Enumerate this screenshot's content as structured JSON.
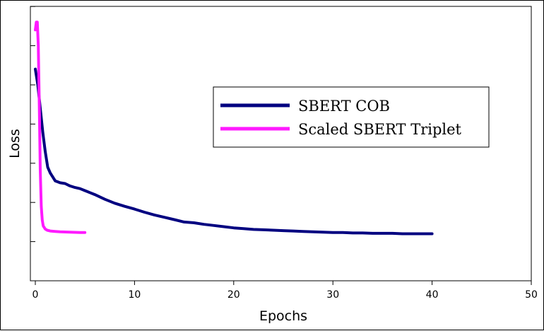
{
  "chart_data": {
    "type": "line",
    "title": "",
    "xlabel": "Epochs",
    "ylabel": "Loss",
    "xlim": [
      0,
      50
    ],
    "x_ticks": [
      "0",
      "10",
      "20",
      "30",
      "40",
      "50"
    ],
    "y_ticks_labeled": false,
    "grid": false,
    "legend_position": "upper-right",
    "series": [
      {
        "name": "SBERT COB",
        "color": "#000080",
        "x": [
          0,
          0.25,
          0.5,
          0.75,
          1,
          1.25,
          1.5,
          1.75,
          2,
          2.5,
          3,
          3.5,
          4,
          4.5,
          5,
          6,
          7,
          8,
          9,
          10,
          11,
          12,
          13,
          14,
          15,
          16,
          17,
          18,
          19,
          20,
          21,
          22,
          23,
          24,
          25,
          26,
          27,
          28,
          29,
          30,
          31,
          32,
          33,
          34,
          35,
          36,
          37,
          38,
          39,
          40
        ],
        "values": [
          0.84,
          0.8,
          0.74,
          0.68,
          0.63,
          0.59,
          0.575,
          0.565,
          0.555,
          0.55,
          0.548,
          0.542,
          0.538,
          0.535,
          0.53,
          0.52,
          0.508,
          0.498,
          0.49,
          0.483,
          0.475,
          0.468,
          0.462,
          0.456,
          0.45,
          0.448,
          0.444,
          0.441,
          0.438,
          0.435,
          0.433,
          0.431,
          0.43,
          0.429,
          0.428,
          0.427,
          0.426,
          0.425,
          0.424,
          0.423,
          0.423,
          0.422,
          0.422,
          0.421,
          0.421,
          0.421,
          0.42,
          0.42,
          0.42,
          0.42
        ]
      },
      {
        "name": "Scaled SBERT Triplet",
        "color": "#ff1aff",
        "x": [
          0,
          0.1,
          0.2,
          0.3,
          0.4,
          0.5,
          0.6,
          0.7,
          0.8,
          1,
          1.2,
          1.5,
          2,
          2.5,
          3,
          3.5,
          4,
          4.5,
          5
        ],
        "values": [
          0.94,
          0.96,
          0.96,
          0.9,
          0.75,
          0.58,
          0.49,
          0.455,
          0.44,
          0.432,
          0.429,
          0.427,
          0.426,
          0.425,
          0.4245,
          0.424,
          0.4235,
          0.423,
          0.423
        ]
      }
    ]
  }
}
